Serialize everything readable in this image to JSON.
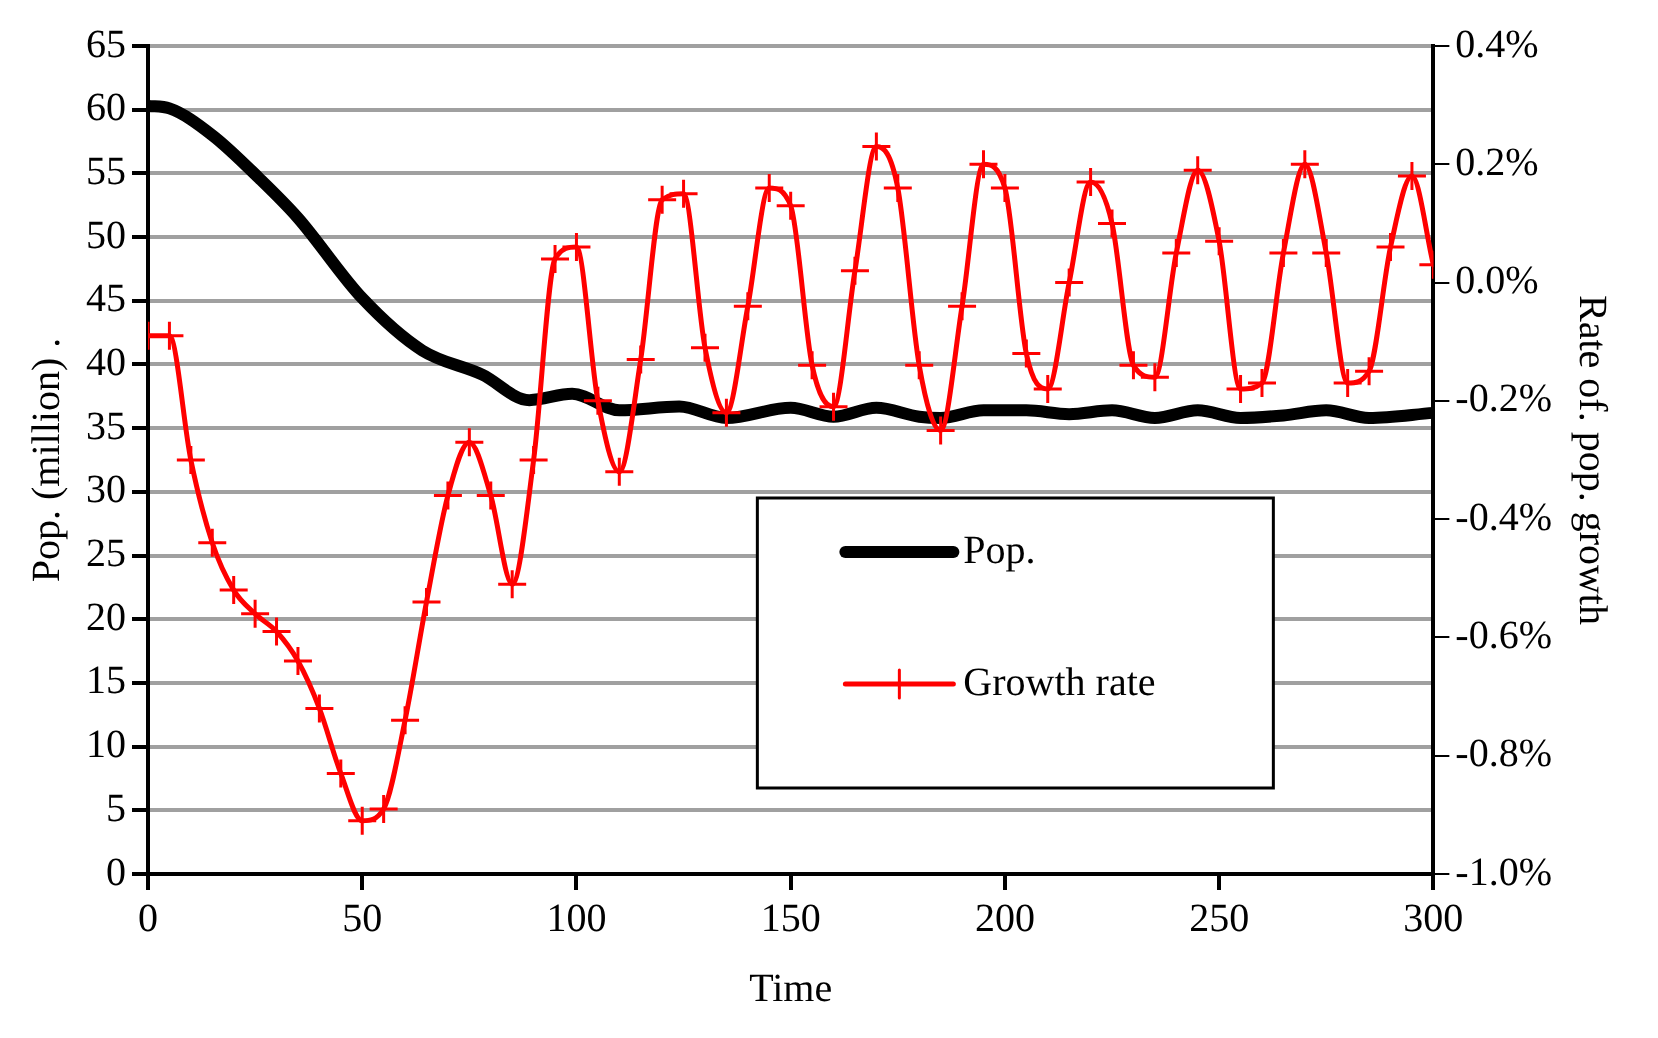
{
  "chart_data": {
    "type": "line",
    "xlabel": "Time",
    "ylabel": "Pop. (million) .",
    "y2label": "Rate of. pop. growth",
    "xlim": [
      0,
      300
    ],
    "xticks": [
      0,
      50,
      100,
      150,
      200,
      250,
      300
    ],
    "ylim": [
      0,
      65
    ],
    "yticks": [
      0,
      5,
      10,
      15,
      20,
      25,
      30,
      35,
      40,
      45,
      50,
      55,
      60,
      65
    ],
    "y2lim": [
      -1.0,
      0.4
    ],
    "y2ticks": [
      {
        "value": -1.0,
        "label": "-1.0%"
      },
      {
        "value": -0.8,
        "label": "-0.8%"
      },
      {
        "value": -0.6,
        "label": "-0.6%"
      },
      {
        "value": -0.4,
        "label": "-0.4%"
      },
      {
        "value": -0.2,
        "label": "-0.2%"
      },
      {
        "value": 0.0,
        "label": "0.0%"
      },
      {
        "value": 0.2,
        "label": "0.2%"
      },
      {
        "value": 0.4,
        "label": "0.4%"
      }
    ],
    "grid": "y",
    "legend": "bottom right",
    "line_style": "solid",
    "series": [
      {
        "name": "Pop.",
        "color": "#000000",
        "marker": "none",
        "x": [
          0,
          5,
          15,
          26,
          35,
          50,
          64,
          78,
          89,
          99,
          110,
          124,
          135,
          150,
          160,
          170,
          180,
          185,
          195,
          205,
          215,
          225,
          235,
          245,
          255,
          265,
          275,
          285,
          300
        ],
        "values": [
          60.3,
          60.1,
          58.0,
          54.6,
          51.5,
          45.2,
          41.1,
          39.2,
          37.2,
          37.7,
          36.4,
          36.7,
          35.8,
          36.6,
          35.9,
          36.6,
          35.9,
          35.8,
          36.4,
          36.4,
          36.1,
          36.4,
          35.8,
          36.4,
          35.8,
          36.0,
          36.4,
          35.8,
          36.2
        ]
      },
      {
        "name": "Growth rate",
        "color": "#ff0000",
        "marker": "cross",
        "axis": "y2",
        "x": [
          0,
          5,
          10,
          15,
          20,
          25,
          30,
          35,
          40,
          45,
          50,
          55,
          60,
          65,
          70,
          75,
          80,
          85,
          90,
          95,
          100,
          105,
          110,
          115,
          120,
          125,
          130,
          135,
          140,
          145,
          150,
          155,
          160,
          165,
          170,
          175,
          180,
          185,
          190,
          195,
          200,
          205,
          210,
          215,
          220,
          225,
          230,
          235,
          240,
          245,
          250,
          255,
          260,
          265,
          270,
          275,
          280,
          285,
          290,
          295,
          300
        ],
        "values": [
          -0.09,
          -0.09,
          -0.3,
          -0.44,
          -0.52,
          -0.56,
          -0.59,
          -0.64,
          -0.72,
          -0.83,
          -0.91,
          -0.89,
          -0.74,
          -0.54,
          -0.36,
          -0.27,
          -0.36,
          -0.51,
          -0.3,
          0.04,
          0.06,
          -0.2,
          -0.32,
          -0.13,
          0.14,
          0.15,
          -0.11,
          -0.22,
          -0.04,
          0.16,
          0.13,
          -0.14,
          -0.21,
          0.02,
          0.23,
          0.16,
          -0.14,
          -0.25,
          -0.04,
          0.2,
          0.16,
          -0.12,
          -0.18,
          0.0,
          0.17,
          0.1,
          -0.14,
          -0.16,
          0.05,
          0.19,
          0.07,
          -0.18,
          -0.17,
          0.05,
          0.2,
          0.05,
          -0.17,
          -0.15,
          0.06,
          0.18,
          0.03
        ]
      }
    ]
  }
}
